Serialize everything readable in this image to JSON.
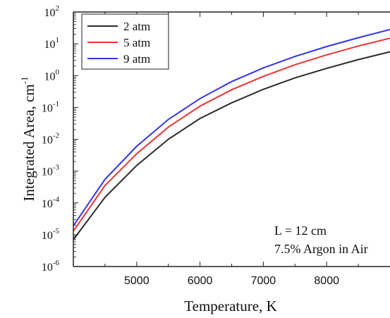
{
  "chart_data": {
    "type": "line",
    "xlabel": "Temperature, K",
    "ylabel": "Integrated Area, cm",
    "ylabel_sup": "-1",
    "x_scale": "linear",
    "y_scale": "log",
    "xlim": [
      4000,
      9000
    ],
    "ylim": [
      1e-06,
      100
    ],
    "x_ticks": [
      {
        "value": 5000,
        "label": "5000"
      },
      {
        "value": 6000,
        "label": "6000"
      },
      {
        "value": 7000,
        "label": "7000"
      },
      {
        "value": 8000,
        "label": "8000"
      }
    ],
    "y_ticks": [
      {
        "value": 1e-06,
        "base": "10",
        "exp": "-6"
      },
      {
        "value": 1e-05,
        "base": "10",
        "exp": "-5"
      },
      {
        "value": 0.0001,
        "base": "10",
        "exp": "-4"
      },
      {
        "value": 0.001,
        "base": "10",
        "exp": "-3"
      },
      {
        "value": 0.01,
        "base": "10",
        "exp": "-2"
      },
      {
        "value": 0.1,
        "base": "10",
        "exp": "-1"
      },
      {
        "value": 1,
        "base": "10",
        "exp": "0"
      },
      {
        "value": 10,
        "base": "10",
        "exp": "1"
      },
      {
        "value": 100,
        "base": "10",
        "exp": "2"
      }
    ],
    "grid": false,
    "legend_position": "top-left",
    "annotations": [
      "L = 12 cm",
      "7.5% Argon in Air"
    ],
    "x": [
      4000,
      4500,
      5000,
      5500,
      6000,
      6500,
      7000,
      7500,
      8000,
      8500,
      9000
    ],
    "series": [
      {
        "name": "2 atm",
        "color": "#2b2b2b",
        "values": [
          7e-06,
          0.00015,
          0.0015,
          0.01,
          0.045,
          0.14,
          0.37,
          0.85,
          1.7,
          3.2,
          5.6
        ]
      },
      {
        "name": "5 atm",
        "color": "#ee3333",
        "values": [
          1.3e-05,
          0.00035,
          0.0035,
          0.024,
          0.11,
          0.36,
          0.95,
          2.2,
          4.5,
          8.5,
          15
        ]
      },
      {
        "name": "9 atm",
        "color": "#3333ee",
        "values": [
          1.9e-05,
          0.00055,
          0.006,
          0.042,
          0.19,
          0.65,
          1.75,
          4.0,
          8.2,
          15.5,
          28
        ]
      }
    ]
  }
}
